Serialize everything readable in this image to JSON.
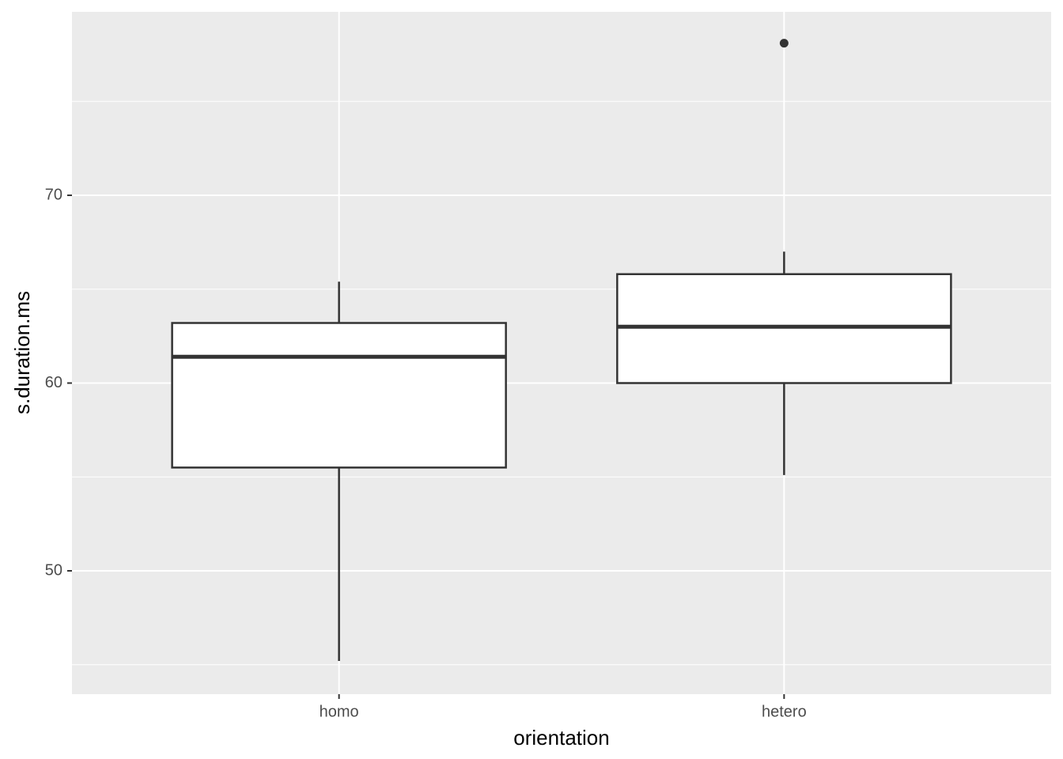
{
  "chart_data": {
    "type": "box",
    "x_label": "orientation",
    "y_label": "s.duration.ms",
    "categories": [
      "homo",
      "hetero"
    ],
    "boxes": [
      {
        "whisker_low": 45.2,
        "q1": 55.5,
        "median": 61.4,
        "q3": 63.2,
        "whisker_high": 65.4,
        "outliers": []
      },
      {
        "whisker_low": 55.1,
        "q1": 60.0,
        "median": 63.0,
        "q3": 65.8,
        "whisker_high": 67.0,
        "outliers": [
          78.1
        ]
      }
    ],
    "ylim": [
      43.43,
      79.77
    ],
    "yticks": [
      50,
      60,
      70
    ],
    "grid": true,
    "box_fill": "#ffffff",
    "line_color": "#333333",
    "panel_color": "#ebebeb"
  }
}
